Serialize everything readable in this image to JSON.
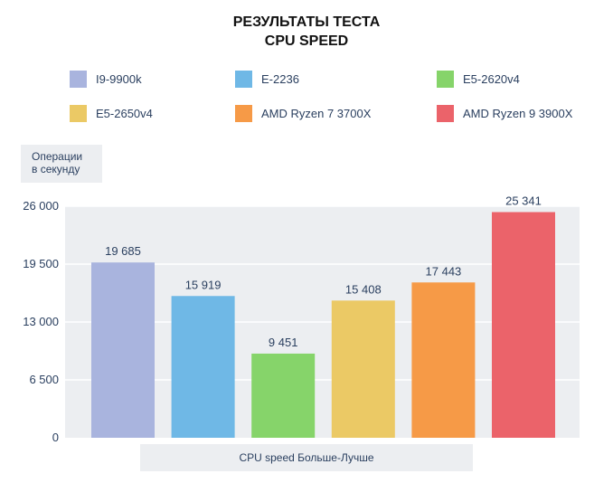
{
  "chart_data": {
    "type": "bar",
    "title_line1": "РЕЗУЛЬТАТЫ ТЕСТА",
    "title_line2": "CPU SPEED",
    "ylabel_line1": "Операции",
    "ylabel_line2": "в секунду",
    "xlabel": "CPU speed Больше-Лучше",
    "ylim": [
      0,
      26000
    ],
    "yticks": [
      0,
      6500,
      13000,
      19500,
      26000
    ],
    "ytick_labels": [
      "0",
      "6 500",
      "13 000",
      "19 500",
      "26 000"
    ],
    "grid": true,
    "legend_position": "top",
    "categories": [
      "I9-9900k",
      "E-2236",
      "E5-2620v4",
      "E5-2650v4",
      "AMD Ryzen 7 3700X",
      "AMD Ryzen 9 3900X"
    ],
    "values": [
      19685,
      15919,
      9451,
      15408,
      17443,
      25341
    ],
    "value_labels": [
      "19 685",
      "15 919",
      "9 451",
      "15 408",
      "17 443",
      "25 341"
    ],
    "colors": [
      "#a9b4de",
      "#6fb8e6",
      "#86d46a",
      "#ebc965",
      "#f69a47",
      "#eb636a"
    ]
  }
}
